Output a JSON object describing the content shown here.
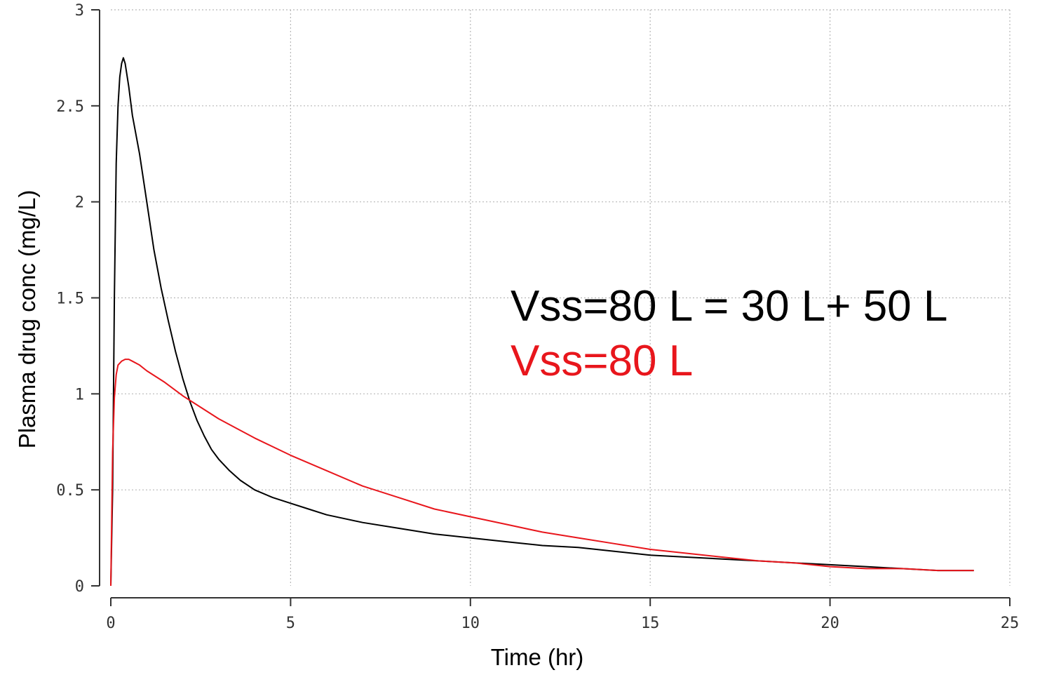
{
  "chart_data": {
    "type": "line",
    "title": "",
    "xlabel": "Time (hr)",
    "ylabel": "Plasma drug conc (mg/L)",
    "xlim": [
      0,
      25
    ],
    "ylim": [
      0,
      3
    ],
    "xticks": [
      0,
      5,
      10,
      15,
      20,
      25
    ],
    "yticks": [
      0,
      0.5,
      1,
      1.5,
      2,
      2.5,
      3
    ],
    "xtick_labels": [
      "0",
      "5",
      "10",
      "15",
      "20",
      "25"
    ],
    "ytick_labels": [
      "0",
      "0.5",
      "1",
      "1.5",
      "2",
      "2.5",
      "3"
    ],
    "grid": true,
    "series": [
      {
        "color": "#000000",
        "x": [
          0,
          0.05,
          0.1,
          0.15,
          0.2,
          0.25,
          0.3,
          0.35,
          0.4,
          0.5,
          0.6,
          0.8,
          1.0,
          1.2,
          1.4,
          1.6,
          1.8,
          2.0,
          2.2,
          2.4,
          2.6,
          2.8,
          3.0,
          3.3,
          3.6,
          4.0,
          4.5,
          5.0,
          5.5,
          6.0,
          7.0,
          8.0,
          9.0,
          10.0,
          11.0,
          12.0,
          13.0,
          14.0,
          15.0,
          16.0,
          17.0,
          18.0,
          19.0,
          20.0,
          21.0,
          22.0,
          23.0,
          24.0
        ],
        "values": [
          0,
          0.5,
          1.5,
          2.2,
          2.5,
          2.65,
          2.72,
          2.75,
          2.72,
          2.6,
          2.45,
          2.25,
          2.0,
          1.75,
          1.55,
          1.38,
          1.22,
          1.08,
          0.96,
          0.86,
          0.78,
          0.71,
          0.66,
          0.6,
          0.55,
          0.5,
          0.46,
          0.43,
          0.4,
          0.37,
          0.33,
          0.3,
          0.27,
          0.25,
          0.23,
          0.21,
          0.2,
          0.18,
          0.16,
          0.15,
          0.14,
          0.13,
          0.12,
          0.11,
          0.1,
          0.09,
          0.08,
          0.08
        ]
      },
      {
        "color": "#e8161c",
        "x": [
          0,
          0.05,
          0.1,
          0.15,
          0.2,
          0.3,
          0.4,
          0.5,
          0.6,
          0.8,
          1.0,
          1.5,
          2.0,
          2.5,
          3.0,
          3.5,
          4.0,
          5.0,
          6.0,
          7.0,
          8.0,
          9.0,
          10.0,
          11.0,
          12.0,
          13.0,
          14.0,
          15.0,
          16.0,
          17.0,
          18.0,
          19.0,
          20.0,
          21.0,
          22.0,
          23.0,
          24.0
        ],
        "values": [
          0,
          0.7,
          0.98,
          1.1,
          1.15,
          1.17,
          1.18,
          1.18,
          1.17,
          1.15,
          1.12,
          1.06,
          0.99,
          0.93,
          0.87,
          0.82,
          0.77,
          0.68,
          0.6,
          0.52,
          0.46,
          0.4,
          0.36,
          0.32,
          0.28,
          0.25,
          0.22,
          0.19,
          0.17,
          0.15,
          0.13,
          0.12,
          0.1,
          0.09,
          0.09,
          0.08,
          0.08
        ]
      }
    ],
    "annotations": [
      {
        "text": "Vss=80 L = 30 L+ 50 L",
        "color": "#000000"
      },
      {
        "text": "Vss=80 L",
        "color": "#e8161c"
      }
    ]
  }
}
